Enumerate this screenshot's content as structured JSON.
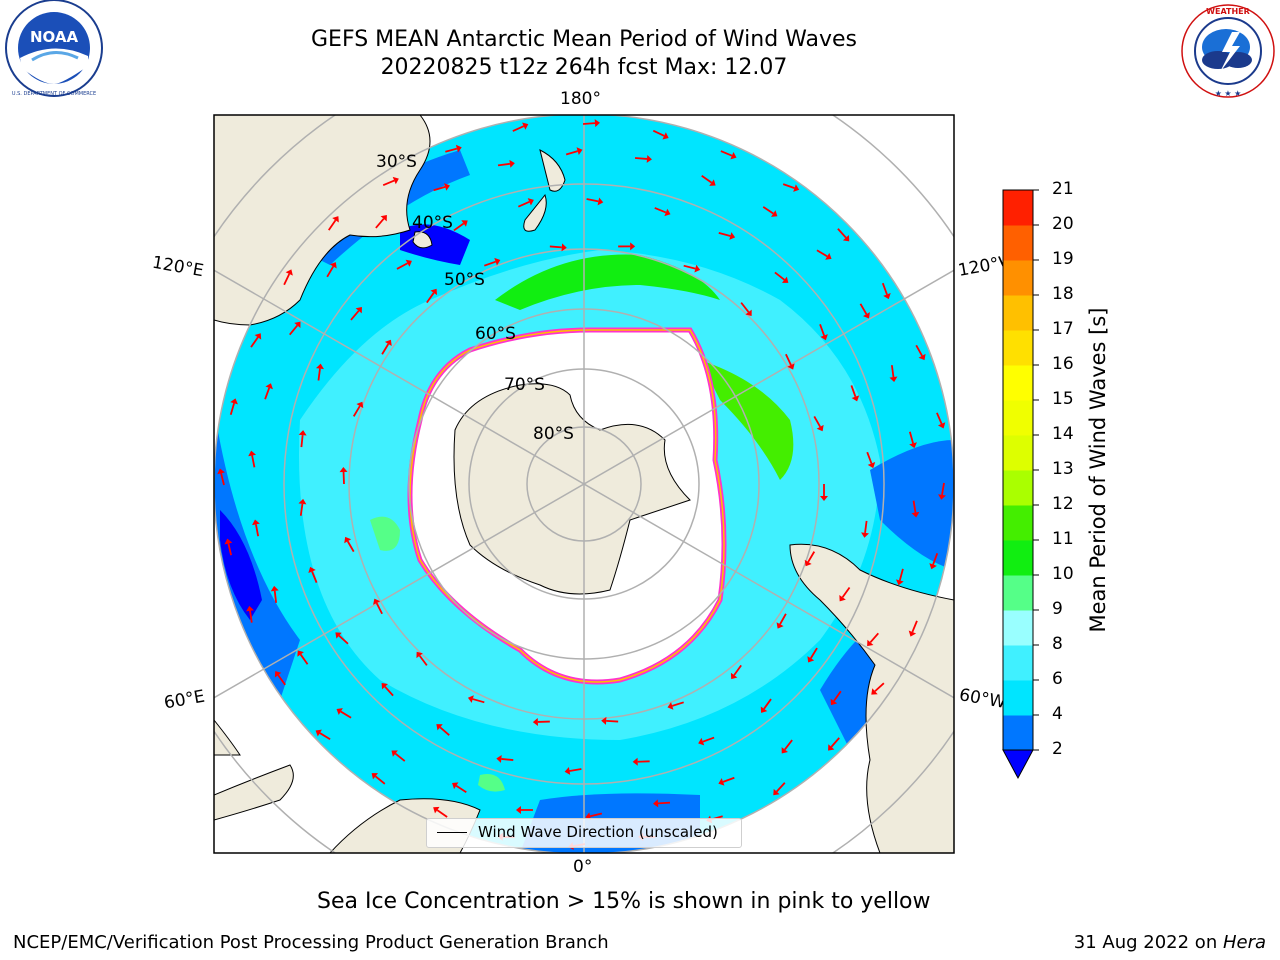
{
  "header": {
    "title_line1": "GEFS MEAN Antarctic Mean Period of Wind Waves",
    "title_line2": "20220825 t12z 264h fcst   Max: 12.07"
  },
  "logos": {
    "left": {
      "name": "NOAA",
      "arc_text": "NATIONAL OCEANIC AND ATMOSPHERIC ADMINISTRATION",
      "bottom_text": "U.S. DEPARTMENT OF COMMERCE"
    },
    "right": {
      "arc_text": "NATIONAL WEATHER SERVICE"
    }
  },
  "map": {
    "projection": "south polar stereographic",
    "lon_labels": {
      "top": "180°",
      "bottom": "0°",
      "upper_left": "120°E",
      "lower_left": "60°E",
      "upper_right": "120°W",
      "lower_right": "60°W"
    },
    "lat_labels": [
      "30°S",
      "40°S",
      "50°S",
      "60°S",
      "70°S",
      "80°S"
    ],
    "legend": "Wind Wave Direction (unscaled)"
  },
  "colorbar": {
    "title": "Mean Period of Wind Waves [s]",
    "ticks": [
      "2",
      "4",
      "6",
      "8",
      "9",
      "10",
      "11",
      "12",
      "13",
      "14",
      "15",
      "16",
      "17",
      "18",
      "19",
      "20",
      "21"
    ],
    "colors": [
      "#0077ff",
      "#00e5ff",
      "#40f0ff",
      "#99ffff",
      "#55ff88",
      "#11ee11",
      "#44ee00",
      "#aaff00",
      "#ddff00",
      "#f0ff00",
      "#ffff00",
      "#ffe000",
      "#ffc000",
      "#ff9000",
      "#ff6000",
      "#ff2000"
    ],
    "extend_color": "#0000ff"
  },
  "note": "Sea Ice Concentration > 15% is shown in pink to yellow",
  "footer": {
    "left": "NCEP/EMC/Verification Post Processing Product Generation Branch",
    "date": "31 Aug 2022 on ",
    "host": "Hera"
  }
}
